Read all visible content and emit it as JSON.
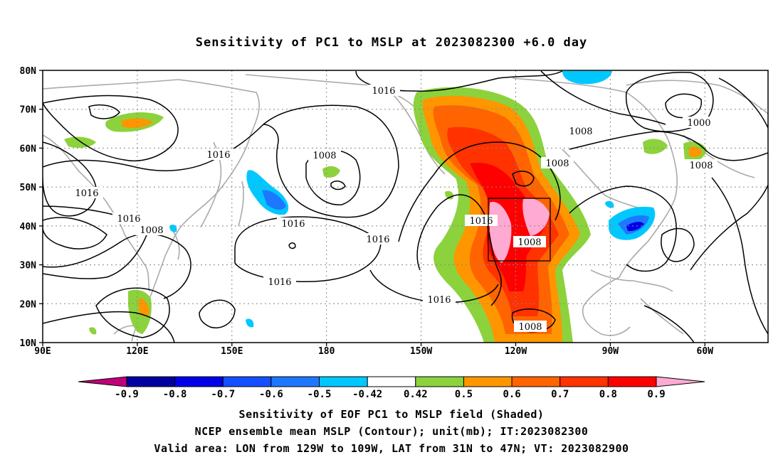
{
  "title": "Sensitivity of PC1 to MSLP at 2023082300 +6.0 day",
  "map": {
    "lat_ticks": [
      "80N",
      "70N",
      "60N",
      "50N",
      "40N",
      "30N",
      "20N",
      "10N"
    ],
    "lon_ticks": [
      "90E",
      "120E",
      "150E",
      "180",
      "150W",
      "120W",
      "90W",
      "60W"
    ],
    "lon_range": [
      90,
      320
    ],
    "lat_range": [
      10,
      80
    ]
  },
  "contour_labels": [
    "1016",
    "1008",
    "1000",
    "1008",
    "1016",
    "1016",
    "1016",
    "1008",
    "1008",
    "1016",
    "1016",
    "1016",
    "1016",
    "1008",
    "1016",
    "1008"
  ],
  "colorbar": {
    "labels": [
      "-0.9",
      "-0.8",
      "-0.7",
      "-0.6",
      "-0.5",
      "-0.42",
      "0.42",
      "0.5",
      "0.6",
      "0.7",
      "0.8",
      "0.9"
    ],
    "colors": [
      "#c0007a",
      "#0000a0",
      "#0000e8",
      "#1450ff",
      "#1e78ff",
      "#00c8ff",
      "#ffffff",
      "#8cd23c",
      "#ff9600",
      "#ff6400",
      "#ff3200",
      "#ff0000",
      "#ffaad2"
    ]
  },
  "captions": {
    "line1": "Sensitivity of EOF PC1 to MSLP field (Shaded)",
    "line2": "NCEP ensemble mean MSLP (Contour); unit(mb); IT:2023082300",
    "line3": "Valid area: LON from 129W to 109W, LAT from 31N to 47N; VT: 2023082900"
  }
}
